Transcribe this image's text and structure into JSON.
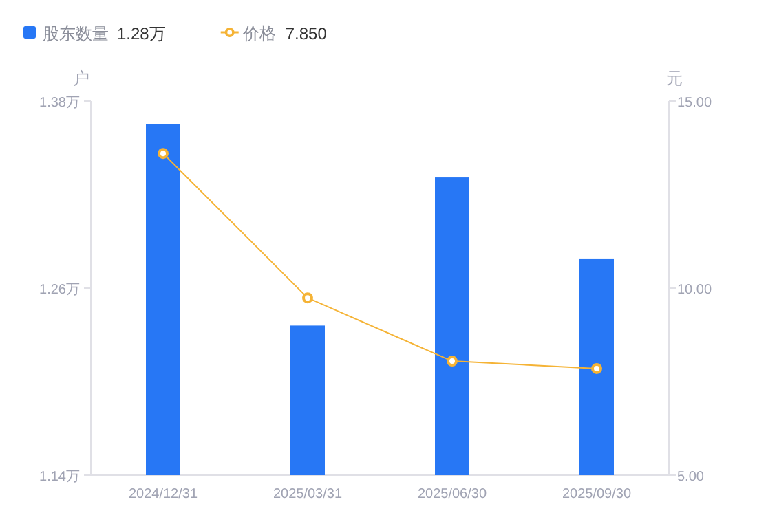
{
  "chart_data": {
    "type": "bar",
    "categories": [
      "2024/12/31",
      "2025/03/31",
      "2025/06/30",
      "2025/09/30"
    ],
    "series": [
      {
        "name": "股东数量",
        "color": "#2777f5",
        "values": [
          1.365,
          1.236,
          1.331,
          1.279
        ]
      },
      {
        "name": "价格",
        "type": "line",
        "axis": "y2",
        "color": "#f5b335",
        "marker": "circle",
        "values": [
          13.6,
          9.74,
          8.05,
          7.85
        ]
      }
    ],
    "ylabel": "户",
    "y2label": "元",
    "ylim": [
      1.14,
      1.38
    ],
    "yticks": [
      {
        "value": 1.14,
        "label": "1.14万"
      },
      {
        "value": 1.26,
        "label": "1.26万"
      },
      {
        "value": 1.38,
        "label": "1.38万"
      }
    ],
    "y2lim": [
      5,
      15
    ],
    "y2ticks": [
      {
        "value": 5,
        "label": "5.00"
      },
      {
        "value": 10,
        "label": "10.00"
      },
      {
        "value": 15,
        "label": "15.00"
      }
    ],
    "annotations": [
      "1.28万",
      "7.850"
    ],
    "legend": "top left",
    "grid": false
  }
}
